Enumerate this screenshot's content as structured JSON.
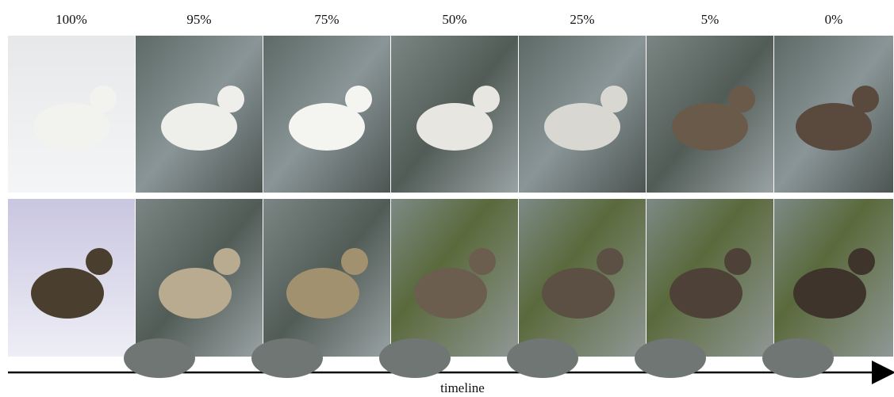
{
  "header": {
    "labels": [
      "100%",
      "95%",
      "75%",
      "50%",
      "25%",
      "5%",
      "0%"
    ]
  },
  "axis": {
    "label": "timeline"
  }
}
